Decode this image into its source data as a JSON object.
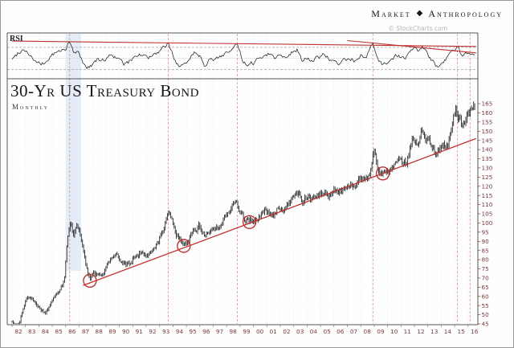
{
  "header": {
    "brand_left": "Market",
    "brand_right": "Anthropology",
    "diamond": "◆",
    "credit": "© StockCharts.com"
  },
  "chart": {
    "title": "30-Yr US Treasury Bond",
    "subtitle": "Monthly",
    "rsi_label": "RSI"
  },
  "chart_data": {
    "type": "line",
    "title": "30-Yr US Treasury Bond",
    "subtitle": "Monthly",
    "x_range": [
      1982,
      2016.6
    ],
    "x_tick_labels": [
      "82",
      "83",
      "84",
      "85",
      "86",
      "87",
      "88",
      "89",
      "90",
      "91",
      "92",
      "93",
      "94",
      "95",
      "96",
      "97",
      "98",
      "99",
      "00",
      "01",
      "02",
      "03",
      "04",
      "05",
      "06",
      "07",
      "08",
      "09",
      "10",
      "11",
      "12",
      "13",
      "14",
      "15",
      "16"
    ],
    "panels": [
      {
        "name": "RSI",
        "ylim": [
          15,
          90
        ],
        "reference_levels": [
          30,
          50,
          70
        ],
        "anchor_points": [
          [
            1982.1,
            50
          ],
          [
            1982.5,
            62
          ],
          [
            1982.9,
            68
          ],
          [
            1983.3,
            58
          ],
          [
            1983.7,
            45
          ],
          [
            1984.1,
            38
          ],
          [
            1984.5,
            42
          ],
          [
            1984.9,
            55
          ],
          [
            1985.3,
            60
          ],
          [
            1985.7,
            63
          ],
          [
            1986.05,
            70
          ],
          [
            1986.3,
            80
          ],
          [
            1986.6,
            58
          ],
          [
            1986.9,
            62
          ],
          [
            1987.2,
            48
          ],
          [
            1987.6,
            33
          ],
          [
            1987.9,
            38
          ],
          [
            1988.3,
            48
          ],
          [
            1988.7,
            44
          ],
          [
            1989.1,
            52
          ],
          [
            1989.5,
            58
          ],
          [
            1989.9,
            48
          ],
          [
            1990.3,
            40
          ],
          [
            1990.7,
            42
          ],
          [
            1991.1,
            55
          ],
          [
            1991.5,
            58
          ],
          [
            1991.9,
            54
          ],
          [
            1992.3,
            52
          ],
          [
            1992.7,
            57
          ],
          [
            1993.1,
            62
          ],
          [
            1993.65,
            77
          ],
          [
            1994.0,
            55
          ],
          [
            1994.4,
            36
          ],
          [
            1994.8,
            34
          ],
          [
            1995.2,
            52
          ],
          [
            1995.6,
            62
          ],
          [
            1996.0,
            55
          ],
          [
            1996.35,
            40
          ],
          [
            1996.7,
            48
          ],
          [
            1997.1,
            46
          ],
          [
            1997.5,
            54
          ],
          [
            1997.9,
            60
          ],
          [
            1998.4,
            66
          ],
          [
            1998.8,
            74
          ],
          [
            1999.2,
            45
          ],
          [
            1999.6,
            34
          ],
          [
            2000.0,
            42
          ],
          [
            2000.4,
            50
          ],
          [
            2000.8,
            57
          ],
          [
            2001.2,
            60
          ],
          [
            2001.6,
            52
          ],
          [
            2002.0,
            56
          ],
          [
            2002.4,
            54
          ],
          [
            2002.9,
            63
          ],
          [
            2003.3,
            67
          ],
          [
            2003.65,
            42
          ],
          [
            2004.0,
            50
          ],
          [
            2004.4,
            46
          ],
          [
            2004.8,
            52
          ],
          [
            2005.2,
            58
          ],
          [
            2005.6,
            50
          ],
          [
            2006.0,
            42
          ],
          [
            2006.4,
            38
          ],
          [
            2006.8,
            48
          ],
          [
            2007.2,
            52
          ],
          [
            2007.6,
            45
          ],
          [
            2008.0,
            55
          ],
          [
            2008.4,
            50
          ],
          [
            2008.9,
            75
          ],
          [
            2009.3,
            45
          ],
          [
            2009.6,
            38
          ],
          [
            2010.0,
            45
          ],
          [
            2010.4,
            52
          ],
          [
            2010.8,
            56
          ],
          [
            2011.2,
            50
          ],
          [
            2011.6,
            58
          ],
          [
            2011.95,
            68
          ],
          [
            2012.3,
            64
          ],
          [
            2012.6,
            70
          ],
          [
            2013.0,
            55
          ],
          [
            2013.4,
            42
          ],
          [
            2013.7,
            36
          ],
          [
            2014.1,
            45
          ],
          [
            2014.5,
            52
          ],
          [
            2014.9,
            62
          ],
          [
            2015.2,
            72
          ],
          [
            2015.5,
            55
          ],
          [
            2015.8,
            58
          ],
          [
            2016.1,
            64
          ],
          [
            2016.4,
            60
          ]
        ],
        "trendlines": [
          {
            "name": "rsi-upper-trendline",
            "x1": 1982.0,
            "y1": 81.2,
            "x2": 2016.6,
            "y2": 71.6
          },
          {
            "name": "rsi-secondary-trendline",
            "x1": 2007.0,
            "y1": 82,
            "x2": 2016.6,
            "y2": 60
          }
        ]
      },
      {
        "name": "Price",
        "ylim": [
          45,
          165
        ],
        "yticks": [
          165,
          160,
          155,
          150,
          145,
          140,
          135,
          130,
          125,
          120,
          115,
          110,
          105,
          100,
          95,
          90,
          85,
          80,
          75,
          70,
          65,
          60,
          55,
          50,
          45
        ],
        "anchor_points": [
          [
            1982.0,
            46
          ],
          [
            1982.3,
            43.5
          ],
          [
            1982.6,
            47
          ],
          [
            1982.95,
            57
          ],
          [
            1983.3,
            60
          ],
          [
            1983.6,
            57
          ],
          [
            1983.9,
            54
          ],
          [
            1984.2,
            52
          ],
          [
            1984.5,
            50
          ],
          [
            1984.8,
            55
          ],
          [
            1985.1,
            60
          ],
          [
            1985.5,
            63
          ],
          [
            1985.9,
            68
          ],
          [
            1986.1,
            88
          ],
          [
            1986.35,
            100
          ],
          [
            1986.6,
            93
          ],
          [
            1986.8,
            98
          ],
          [
            1987.0,
            95
          ],
          [
            1987.3,
            84
          ],
          [
            1987.6,
            73
          ],
          [
            1987.85,
            68
          ],
          [
            1988.1,
            74
          ],
          [
            1988.4,
            71.5
          ],
          [
            1988.7,
            72
          ],
          [
            1989.0,
            75
          ],
          [
            1989.4,
            79
          ],
          [
            1989.8,
            83
          ],
          [
            1990.1,
            80
          ],
          [
            1990.4,
            77.5
          ],
          [
            1990.8,
            78
          ],
          [
            1991.2,
            82
          ],
          [
            1991.6,
            85
          ],
          [
            1992.0,
            84
          ],
          [
            1992.4,
            85
          ],
          [
            1992.8,
            88
          ],
          [
            1993.2,
            94
          ],
          [
            1993.7,
            107
          ],
          [
            1994.0,
            100
          ],
          [
            1994.4,
            92
          ],
          [
            1994.8,
            87.5
          ],
          [
            1995.2,
            91
          ],
          [
            1995.6,
            96
          ],
          [
            1995.95,
            99
          ],
          [
            1996.3,
            94
          ],
          [
            1996.6,
            95
          ],
          [
            1996.9,
            97
          ],
          [
            1997.2,
            96
          ],
          [
            1997.5,
            99
          ],
          [
            1997.9,
            104
          ],
          [
            1998.3,
            107
          ],
          [
            1998.75,
            112
          ],
          [
            1999.1,
            104
          ],
          [
            1999.4,
            102
          ],
          [
            1999.7,
            100.5
          ],
          [
            2000.0,
            101
          ],
          [
            2000.4,
            103
          ],
          [
            2000.8,
            106
          ],
          [
            2001.2,
            107
          ],
          [
            2001.5,
            104
          ],
          [
            2001.8,
            108
          ],
          [
            2002.1,
            106
          ],
          [
            2002.5,
            110
          ],
          [
            2002.9,
            114
          ],
          [
            2003.2,
            116
          ],
          [
            2003.45,
            118
          ],
          [
            2003.65,
            112
          ],
          [
            2004.0,
            115
          ],
          [
            2004.3,
            113
          ],
          [
            2004.7,
            115
          ],
          [
            2005.0,
            117
          ],
          [
            2005.3,
            118
          ],
          [
            2005.7,
            116
          ],
          [
            2006.0,
            119
          ],
          [
            2006.3,
            116
          ],
          [
            2006.6,
            117
          ],
          [
            2006.9,
            120
          ],
          [
            2007.2,
            122
          ],
          [
            2007.5,
            120
          ],
          [
            2007.8,
            122
          ],
          [
            2008.1,
            126
          ],
          [
            2008.4,
            124
          ],
          [
            2008.7,
            125
          ],
          [
            2008.95,
            141
          ],
          [
            2009.2,
            130
          ],
          [
            2009.45,
            128
          ],
          [
            2009.65,
            127
          ],
          [
            2009.9,
            129
          ],
          [
            2010.2,
            130
          ],
          [
            2010.5,
            132
          ],
          [
            2010.8,
            133
          ],
          [
            2011.1,
            132
          ],
          [
            2011.4,
            134
          ],
          [
            2011.7,
            140
          ],
          [
            2011.95,
            146
          ],
          [
            2012.2,
            144
          ],
          [
            2012.55,
            151
          ],
          [
            2012.8,
            149
          ],
          [
            2013.1,
            147
          ],
          [
            2013.4,
            142
          ],
          [
            2013.65,
            138
          ],
          [
            2013.9,
            139
          ],
          [
            2014.2,
            141
          ],
          [
            2014.5,
            144
          ],
          [
            2014.8,
            150
          ],
          [
            2015.05,
            162
          ],
          [
            2015.3,
            158
          ],
          [
            2015.55,
            152
          ],
          [
            2015.8,
            156
          ],
          [
            2016.1,
            160
          ],
          [
            2016.35,
            162
          ],
          [
            2016.55,
            164
          ]
        ],
        "trendline": {
          "name": "price-support-trendline",
          "x1": 1987.3,
          "y1": 66,
          "x2": 2016.6,
          "y2": 146
        },
        "circle_markers": [
          [
            1987.8,
            68.5
          ],
          [
            1994.8,
            87.5
          ],
          [
            1999.7,
            100.5
          ],
          [
            2009.65,
            127
          ]
        ]
      }
    ],
    "event_lines_x": [
      1986.3,
      1993.65,
      1998.8,
      2008.9,
      2015.2,
      2016.15
    ],
    "highlight_band_x": [
      1986.0,
      1987.15
    ],
    "highlight_band_bottom": 74,
    "colors": {
      "trend_red": "#c03030",
      "dashed_red": "#dd9090",
      "band_blue": "#d9e6f3",
      "bars": "#1c1c1c",
      "rsi_line": "#151515",
      "axis_label": "#7a3b3b",
      "grid": "#e4e4e4",
      "frame": "#555555"
    }
  }
}
